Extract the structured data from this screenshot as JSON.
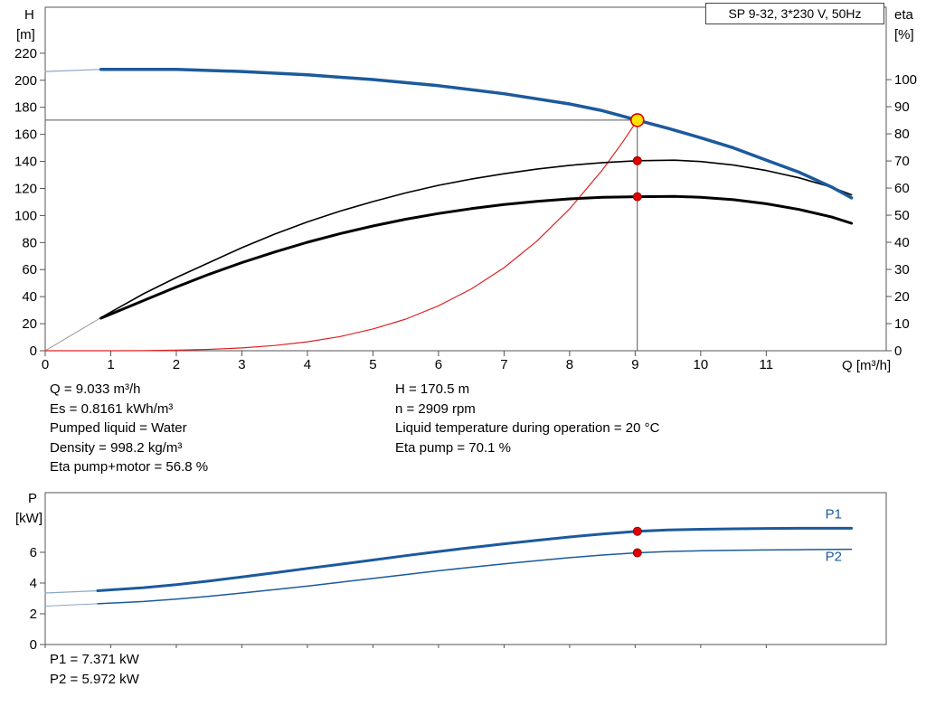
{
  "title_box": "SP 9-32, 3*230 V, 50Hz",
  "colors": {
    "curve_blue": "#1c5a9b",
    "curve_black": "#000000",
    "curve_red": "#dd2222",
    "lead_gray": "#999999",
    "marker_red": "#e00000",
    "marker_yellow": "#ffe400",
    "axis_gray": "#555555"
  },
  "info": {
    "left": [
      "Q = 9.033 m³/h",
      "Es = 0.8161 kWh/m³",
      "Pumped liquid = Water",
      "Density = 998.2 kg/m³",
      "Eta pump+motor = 56.8 %"
    ],
    "right": [
      "H = 170.5 m",
      "n = 2909 rpm",
      "Liquid temperature during operation = 20 °C",
      "Eta pump = 70.1 %"
    ],
    "power": [
      "P1 = 7.371 kW",
      "P2 = 5.972 kW"
    ]
  },
  "chart_data": [
    {
      "id": "qh_eta",
      "type": "line",
      "title": "SP 9-32, 3*230 V, 50Hz",
      "x_label": "Q [m³/h]",
      "y_left_label": [
        "H",
        "[m]"
      ],
      "y_right_label": [
        "eta",
        "[%]"
      ],
      "x_range": [
        0,
        12.83
      ],
      "y_left_range": [
        0,
        254
      ],
      "y_right_range": [
        0,
        126.7
      ],
      "x_ticks": [
        0,
        1,
        2,
        3,
        4,
        5,
        6,
        7,
        8,
        9,
        10,
        11
      ],
      "y_left_ticks": [
        0,
        20,
        40,
        60,
        80,
        100,
        120,
        140,
        160,
        180,
        200,
        220
      ],
      "y_right_ticks": [
        0,
        10,
        20,
        30,
        40,
        50,
        60,
        70,
        80,
        90,
        100
      ],
      "duty_point": {
        "q": 9.033,
        "h": 170.5,
        "eta_pump": 70.1,
        "eta_pump_motor": 56.8
      },
      "crosshair": {
        "h_value": 170.5,
        "q_value": 9.033
      },
      "series": [
        {
          "name": "h-curve-lead",
          "axis": "left",
          "color": "#8aa8c8",
          "width": 1.2,
          "points": [
            [
              0,
              206.5
            ],
            [
              0.85,
              208
            ]
          ]
        },
        {
          "name": "eta-curves-lead",
          "axis": "right",
          "color": "#999999",
          "width": 1,
          "points": [
            [
              0,
              0
            ],
            [
              0.85,
              12.2
            ]
          ]
        },
        {
          "name": "system-curve",
          "axis": "left",
          "color": "#dd2222",
          "width": 1.2,
          "points": [
            [
              0,
              0
            ],
            [
              1,
              0
            ],
            [
              1.5,
              0.1
            ],
            [
              2,
              0.4
            ],
            [
              2.5,
              1
            ],
            [
              3,
              2.1
            ],
            [
              3.5,
              3.9
            ],
            [
              4,
              6.6
            ],
            [
              4.5,
              10.5
            ],
            [
              5,
              16.1
            ],
            [
              5.5,
              23.4
            ],
            [
              6,
              33.2
            ],
            [
              6.5,
              45.7
            ],
            [
              7,
              61.4
            ],
            [
              7.5,
              81
            ],
            [
              8,
              104.9
            ],
            [
              8.5,
              133.7
            ],
            [
              8.8,
              153.6
            ],
            [
              9.033,
              170.5
            ]
          ]
        },
        {
          "name": "eta-pump-curve",
          "axis": "right",
          "color": "#000000",
          "width": 1.6,
          "points": [
            [
              0.85,
              12.2
            ],
            [
              1.5,
              21
            ],
            [
              2,
              27
            ],
            [
              2.5,
              32.5
            ],
            [
              3,
              38
            ],
            [
              3.5,
              43
            ],
            [
              4,
              47.5
            ],
            [
              4.5,
              51.5
            ],
            [
              5,
              55
            ],
            [
              5.5,
              58.2
            ],
            [
              6,
              61
            ],
            [
              6.5,
              63.3
            ],
            [
              7,
              65.3
            ],
            [
              7.5,
              67
            ],
            [
              8,
              68.4
            ],
            [
              8.5,
              69.4
            ],
            [
              9.033,
              70.1
            ],
            [
              9.6,
              70.3
            ],
            [
              10,
              69.8
            ],
            [
              10.5,
              68.5
            ],
            [
              11,
              66.5
            ],
            [
              11.5,
              63.8
            ],
            [
              12,
              60.3
            ],
            [
              12.3,
              57.5
            ]
          ]
        },
        {
          "name": "eta-pump-motor-curve",
          "axis": "right",
          "color": "#000000",
          "width": 3,
          "points": [
            [
              0.85,
              12
            ],
            [
              1.5,
              18.5
            ],
            [
              2,
              23.5
            ],
            [
              2.5,
              28.2
            ],
            [
              3,
              32.5
            ],
            [
              3.5,
              36.4
            ],
            [
              4,
              40
            ],
            [
              4.5,
              43.2
            ],
            [
              5,
              46
            ],
            [
              5.5,
              48.5
            ],
            [
              6,
              50.6
            ],
            [
              6.5,
              52.4
            ],
            [
              7,
              53.9
            ],
            [
              7.5,
              55.1
            ],
            [
              8,
              56
            ],
            [
              8.5,
              56.6
            ],
            [
              9.033,
              56.8
            ],
            [
              9.6,
              56.9
            ],
            [
              10,
              56.6
            ],
            [
              10.5,
              55.7
            ],
            [
              11,
              54.2
            ],
            [
              11.5,
              52.1
            ],
            [
              12,
              49.3
            ],
            [
              12.3,
              47
            ]
          ]
        },
        {
          "name": "h-curve",
          "axis": "left",
          "color": "#1c5a9b",
          "width": 3.5,
          "points": [
            [
              0.85,
              208
            ],
            [
              2,
              208
            ],
            [
              3,
              206.5
            ],
            [
              4,
              204
            ],
            [
              5,
              200.5
            ],
            [
              6,
              196
            ],
            [
              7,
              190
            ],
            [
              8,
              182.5
            ],
            [
              8.5,
              177.5
            ],
            [
              9.033,
              170.5
            ],
            [
              9.5,
              164.5
            ],
            [
              10,
              157.5
            ],
            [
              10.5,
              150
            ],
            [
              11,
              141
            ],
            [
              11.5,
              132
            ],
            [
              12,
              121
            ],
            [
              12.3,
              113
            ]
          ]
        }
      ],
      "markers": [
        {
          "name": "duty-point-marker",
          "axis": "left",
          "q": 9.033,
          "value": 170.5,
          "r": 7,
          "fill": "#ffe400",
          "stroke": "#e00000",
          "interactable": true
        },
        {
          "name": "eta-pump-duty-dot",
          "axis": "right",
          "q": 9.033,
          "value": 70.1,
          "r": 4.5,
          "fill": "#e00000",
          "stroke": "#990000",
          "interactable": false
        },
        {
          "name": "eta-motor-duty-dot",
          "axis": "right",
          "q": 9.033,
          "value": 56.8,
          "r": 4.5,
          "fill": "#e00000",
          "stroke": "#990000",
          "interactable": false
        }
      ]
    },
    {
      "id": "power",
      "type": "line",
      "title": "",
      "x_label": "",
      "y_left_label": [
        "P",
        "[kW]"
      ],
      "x_range": [
        0,
        12.83
      ],
      "y_left_range": [
        0,
        9.88
      ],
      "x_ticks": [
        0,
        1,
        2,
        3,
        4,
        5,
        6,
        7,
        8,
        9,
        10,
        11
      ],
      "y_left_ticks": [
        0,
        2,
        4,
        6
      ],
      "duty_point": {
        "q": 9.033,
        "p1": 7.371,
        "p2": 5.972
      },
      "series": [
        {
          "name": "p1-curve-lead",
          "axis": "left",
          "color": "#8aa8c8",
          "width": 1.2,
          "points": [
            [
              0,
              3.35
            ],
            [
              0.8,
              3.5
            ]
          ]
        },
        {
          "name": "p2-curve-lead",
          "axis": "left",
          "color": "#8aa8c8",
          "width": 1,
          "points": [
            [
              0,
              2.5
            ],
            [
              0.8,
              2.65
            ]
          ]
        },
        {
          "name": "p1-curve",
          "axis": "left",
          "color": "#1c5a9b",
          "width": 3,
          "points": [
            [
              0.8,
              3.5
            ],
            [
              1.5,
              3.7
            ],
            [
              2,
              3.9
            ],
            [
              2.5,
              4.13
            ],
            [
              3,
              4.4
            ],
            [
              3.5,
              4.67
            ],
            [
              4,
              4.95
            ],
            [
              4.5,
              5.22
            ],
            [
              5,
              5.5
            ],
            [
              5.5,
              5.78
            ],
            [
              6,
              6.05
            ],
            [
              6.5,
              6.31
            ],
            [
              7,
              6.55
            ],
            [
              7.5,
              6.78
            ],
            [
              8,
              7.0
            ],
            [
              8.5,
              7.19
            ],
            [
              9.033,
              7.371
            ],
            [
              9.5,
              7.45
            ],
            [
              10,
              7.5
            ],
            [
              10.5,
              7.53
            ],
            [
              11,
              7.55
            ],
            [
              11.5,
              7.56
            ],
            [
              12.3,
              7.56
            ]
          ]
        },
        {
          "name": "p2-curve",
          "axis": "left",
          "color": "#1c5a9b",
          "width": 1.5,
          "points": [
            [
              0.8,
              2.65
            ],
            [
              1.5,
              2.8
            ],
            [
              2,
              2.95
            ],
            [
              2.5,
              3.14
            ],
            [
              3,
              3.35
            ],
            [
              3.5,
              3.57
            ],
            [
              4,
              3.8
            ],
            [
              4.5,
              4.05
            ],
            [
              5,
              4.3
            ],
            [
              5.5,
              4.55
            ],
            [
              6,
              4.8
            ],
            [
              6.5,
              5.03
            ],
            [
              7,
              5.25
            ],
            [
              7.5,
              5.46
            ],
            [
              8,
              5.65
            ],
            [
              8.5,
              5.82
            ],
            [
              9.033,
              5.972
            ],
            [
              9.5,
              6.05
            ],
            [
              10,
              6.1
            ],
            [
              10.5,
              6.13
            ],
            [
              11,
              6.15
            ],
            [
              11.5,
              6.17
            ],
            [
              12.3,
              6.2
            ]
          ]
        }
      ],
      "markers": [
        {
          "name": "p1-duty-dot",
          "axis": "left",
          "q": 9.033,
          "value": 7.371,
          "r": 4.5,
          "fill": "#e00000",
          "stroke": "#990000",
          "interactable": false
        },
        {
          "name": "p2-duty-dot",
          "axis": "left",
          "q": 9.033,
          "value": 5.972,
          "r": 4.5,
          "fill": "#e00000",
          "stroke": "#990000",
          "interactable": false
        }
      ],
      "labels": [
        {
          "name": "p1-series-label",
          "text": "P1",
          "q": 11.9,
          "value": 8.2,
          "color": "#1c5a9b"
        },
        {
          "name": "p2-series-label",
          "text": "P2",
          "q": 11.9,
          "value": 5.45,
          "color": "#1c5a9b"
        }
      ]
    }
  ]
}
